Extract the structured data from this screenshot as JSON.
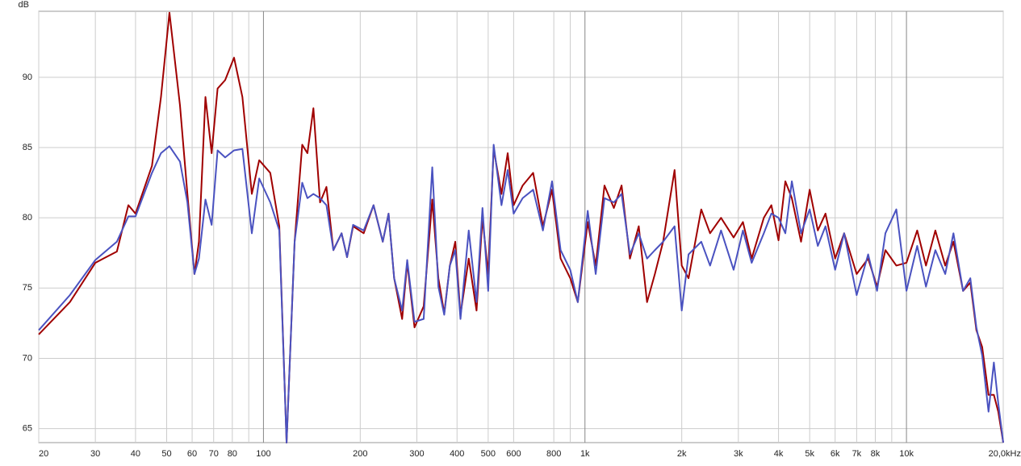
{
  "chart_data": {
    "type": "line",
    "ylabel": "dB",
    "log_x": true,
    "grid": true,
    "xlim": [
      20,
      20000
    ],
    "ylim": [
      64,
      94.7
    ],
    "yticks": [
      65,
      70,
      75,
      80,
      85,
      90
    ],
    "xticks": [
      20,
      30,
      40,
      50,
      60,
      70,
      80,
      100,
      200,
      300,
      400,
      500,
      600,
      800,
      {
        "value": 1000,
        "label": "1k"
      },
      {
        "value": 2000,
        "label": "2k"
      },
      {
        "value": 3000,
        "label": "3k"
      },
      {
        "value": 4000,
        "label": "4k"
      },
      {
        "value": 5000,
        "label": "5k"
      },
      {
        "value": 6000,
        "label": "6k"
      },
      {
        "value": 7000,
        "label": "7k"
      },
      {
        "value": 8000,
        "label": "8k"
      },
      {
        "value": 10000,
        "label": "10k"
      },
      {
        "value": 20000,
        "label": "20,0kHz"
      }
    ],
    "xgrid_minor": [
      90,
      900,
      9000
    ],
    "x": [
      20,
      25,
      30,
      35,
      38,
      40,
      45,
      48,
      51,
      55,
      58,
      61,
      63,
      66,
      69,
      72,
      76,
      81,
      86,
      92,
      97,
      105,
      112,
      118,
      125,
      132,
      137,
      143,
      150,
      157,
      165,
      175,
      182,
      190,
      205,
      220,
      235,
      245,
      255,
      270,
      280,
      295,
      315,
      335,
      350,
      365,
      380,
      395,
      410,
      435,
      460,
      480,
      500,
      520,
      550,
      575,
      600,
      640,
      690,
      740,
      790,
      840,
      900,
      950,
      1020,
      1080,
      1150,
      1230,
      1300,
      1380,
      1470,
      1560,
      1650,
      1750,
      1900,
      2000,
      2100,
      2300,
      2450,
      2650,
      2900,
      3100,
      3300,
      3600,
      3800,
      4000,
      4200,
      4400,
      4700,
      5000,
      5300,
      5600,
      6000,
      6400,
      7000,
      7600,
      8100,
      8600,
      9300,
      10000,
      10800,
      11500,
      12300,
      13200,
      14000,
      15000,
      15800,
      16500,
      17200,
      18000,
      18700,
      19300,
      20000
    ],
    "series": [
      {
        "color": "#a00000",
        "values": [
          71.7,
          74.0,
          76.8,
          77.6,
          80.9,
          80.3,
          83.7,
          88.6,
          94.6,
          88.0,
          81.7,
          76.0,
          78.3,
          88.6,
          84.6,
          89.2,
          89.8,
          91.4,
          88.6,
          81.7,
          84.1,
          83.2,
          79.4,
          64.0,
          78.3,
          85.2,
          84.6,
          87.8,
          81.1,
          82.2,
          77.7,
          78.9,
          77.2,
          79.4,
          78.9,
          80.9,
          78.3,
          80.3,
          75.7,
          72.8,
          76.8,
          72.2,
          73.7,
          81.3,
          75.7,
          73.2,
          76.6,
          78.3,
          73.1,
          77.1,
          73.4,
          80.0,
          76.0,
          84.9,
          81.7,
          84.6,
          80.9,
          82.3,
          83.2,
          79.4,
          82.0,
          77.1,
          75.7,
          74.0,
          79.7,
          76.6,
          82.3,
          80.7,
          82.3,
          77.1,
          79.4,
          74.0,
          76.0,
          78.3,
          83.4,
          76.6,
          75.7,
          80.6,
          78.9,
          80.0,
          78.6,
          79.7,
          77.1,
          80.0,
          80.9,
          78.4,
          82.6,
          81.4,
          78.3,
          82.0,
          79.1,
          80.3,
          77.1,
          78.9,
          76.0,
          77.1,
          75.1,
          77.7,
          76.6,
          76.8,
          79.1,
          76.6,
          79.1,
          76.6,
          78.3,
          74.8,
          75.4,
          72.0,
          70.8,
          67.4,
          67.4,
          66.2,
          64.0
        ]
      },
      {
        "color": "#4a52c0",
        "values": [
          72.0,
          74.5,
          77.0,
          78.3,
          80.1,
          80.1,
          83.2,
          84.6,
          85.1,
          84.0,
          81.1,
          76.0,
          77.1,
          81.3,
          79.5,
          84.8,
          84.3,
          84.8,
          84.9,
          78.9,
          82.8,
          81.1,
          79.1,
          64.0,
          78.3,
          82.5,
          81.4,
          81.7,
          81.4,
          80.9,
          77.7,
          78.9,
          77.2,
          79.5,
          79.1,
          80.9,
          78.3,
          80.3,
          75.7,
          73.4,
          77.0,
          72.6,
          72.8,
          83.6,
          75.1,
          73.1,
          76.6,
          77.7,
          72.8,
          79.1,
          74.0,
          80.7,
          74.8,
          85.2,
          80.9,
          83.4,
          80.3,
          81.4,
          82.0,
          79.1,
          82.6,
          77.7,
          76.3,
          74.0,
          80.5,
          76.0,
          81.4,
          81.1,
          81.7,
          77.4,
          78.9,
          77.1,
          77.7,
          78.3,
          79.4,
          73.4,
          77.4,
          78.3,
          76.6,
          79.1,
          76.3,
          79.1,
          76.8,
          78.9,
          80.3,
          80.0,
          78.9,
          82.6,
          78.9,
          80.6,
          78.0,
          79.4,
          76.3,
          78.9,
          74.5,
          77.4,
          74.8,
          78.9,
          80.6,
          74.8,
          78.0,
          75.1,
          77.7,
          76.0,
          78.9,
          74.8,
          75.7,
          72.2,
          70.2,
          66.2,
          69.7,
          66.8,
          64.0
        ]
      }
    ]
  }
}
